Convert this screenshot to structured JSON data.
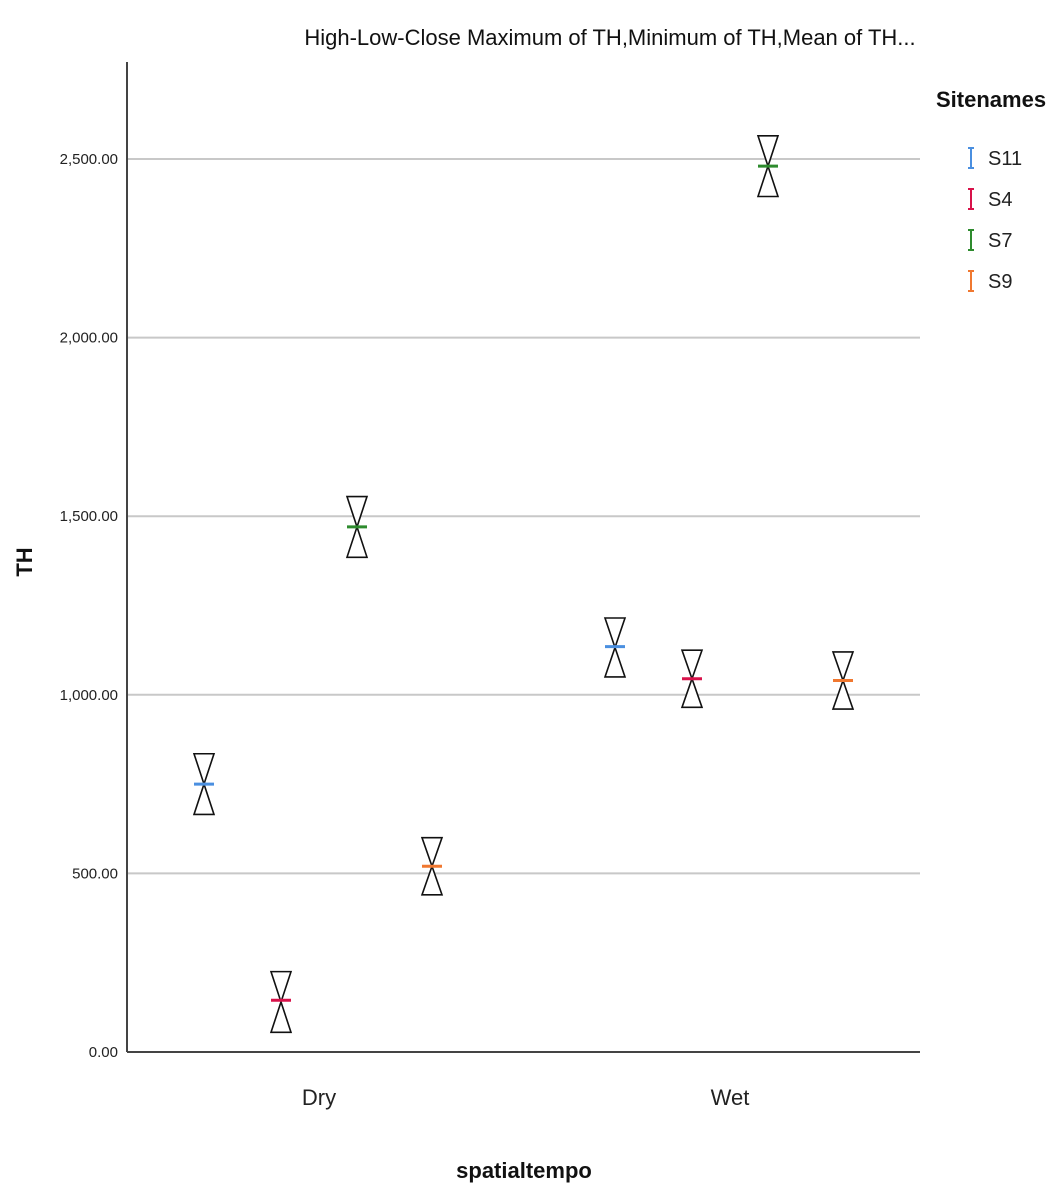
{
  "chart_data": {
    "type": "high-low-close",
    "title": "High-Low-Close Maximum of TH,Minimum of TH,Mean of TH...",
    "xlabel": "spatialtempo",
    "ylabel": "TH",
    "categories": [
      "Dry",
      "Wet"
    ],
    "ylim": [
      0,
      2750
    ],
    "yticks": [
      0,
      500,
      1000,
      1500,
      2000,
      2500
    ],
    "ytick_labels": [
      "0.00",
      "500.00",
      "1,000.00",
      "1,500.00",
      "2,000.00",
      "2,500.00"
    ],
    "grid": true,
    "legend": {
      "title": "Sitenames",
      "position": "top-right"
    },
    "series": [
      {
        "name": "S11",
        "color": "#4a8fe0",
        "high": [
          835,
          1215
        ],
        "low": [
          665,
          1050
        ],
        "close": [
          750,
          1135
        ]
      },
      {
        "name": "S4",
        "color": "#d8124a",
        "high": [
          225,
          1125
        ],
        "low": [
          55,
          965
        ],
        "close": [
          145,
          1045
        ]
      },
      {
        "name": "S7",
        "color": "#2e8b2e",
        "high": [
          1555,
          2565
        ],
        "low": [
          1385,
          2395
        ],
        "close": [
          1470,
          2480
        ]
      },
      {
        "name": "S9",
        "color": "#f07830",
        "high": [
          600,
          1120
        ],
        "low": [
          440,
          960
        ],
        "close": [
          520,
          1040
        ]
      }
    ]
  }
}
